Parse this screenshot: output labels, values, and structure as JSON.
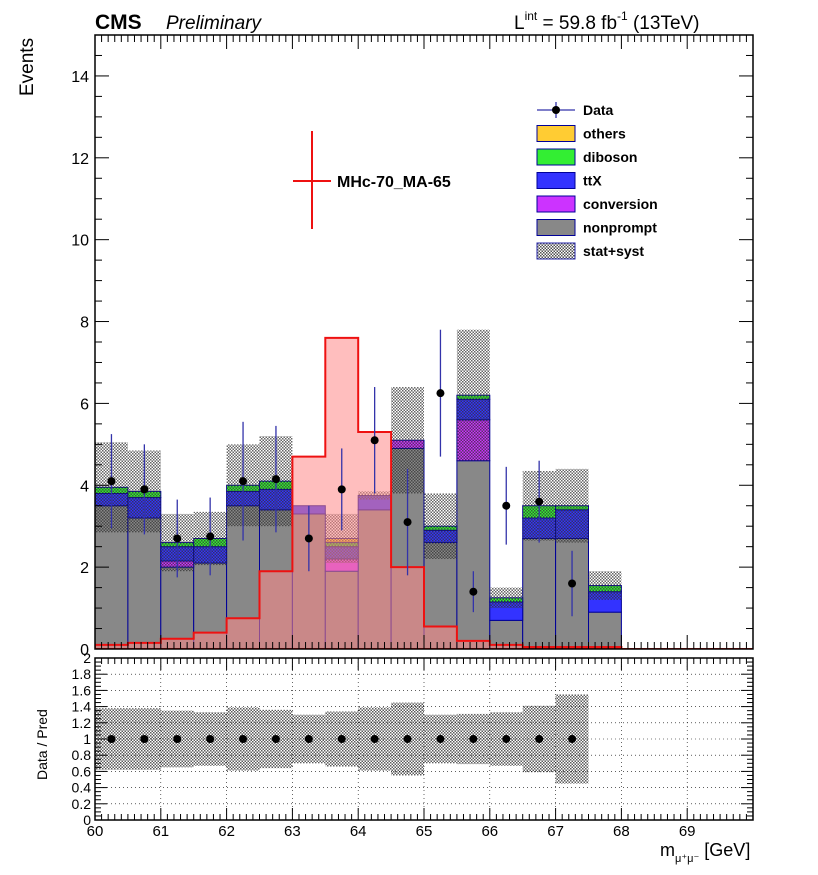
{
  "header": {
    "experiment": "CMS",
    "status": "Preliminary",
    "lumi_prefix": "L",
    "lumi_sup": "int",
    "lumi_value": " = 59.8 fb",
    "lumi_exp": "-1",
    "lumi_suffix": " (13TeV)"
  },
  "axes": {
    "y_main": "Events",
    "y_ratio": "Data / Pred",
    "x_main": "m",
    "x_sub": "μ⁺μ⁻",
    "x_unit": " [GeV]"
  },
  "signal_label": "MHc-70_MA-65",
  "colors": {
    "others": "#ffcc33",
    "diboson": "#33ee33",
    "ttX": "#3333ff",
    "conversion": "#cc33ff",
    "nonprompt": "#888888",
    "signal_line": "#ee1111",
    "signal_fill": "#ff8888",
    "data": "#000000",
    "data_err": "#3333aa",
    "border": "#000099"
  },
  "chart_data": {
    "type": "bar",
    "stacked": true,
    "bin_edges": [
      60,
      60.5,
      61,
      61.5,
      62,
      62.5,
      63,
      63.5,
      64,
      64.5,
      65,
      65.5,
      66,
      66.5,
      67,
      67.5,
      68,
      68.5,
      69,
      69.5,
      70
    ],
    "main": {
      "ylim": [
        0,
        15
      ],
      "yticks": [
        0,
        2,
        4,
        6,
        8,
        10,
        12,
        14
      ],
      "series": [
        {
          "name": "nonprompt",
          "values": [
            3.5,
            3.2,
            2.0,
            2.1,
            3.5,
            3.4,
            3.3,
            1.9,
            3.4,
            4.9,
            2.6,
            4.6,
            0.7,
            2.7,
            2.7,
            0.9,
            0,
            0,
            0,
            0
          ]
        },
        {
          "name": "conversion",
          "values": [
            0,
            0,
            0.15,
            0,
            0,
            0,
            0,
            0.3,
            0,
            0.2,
            0,
            1.0,
            0,
            0,
            0,
            0,
            0,
            0,
            0,
            0
          ]
        },
        {
          "name": "ttX",
          "values": [
            0.3,
            0.5,
            0.35,
            0.4,
            0.35,
            0.5,
            0.2,
            0.3,
            0.35,
            0,
            0.3,
            0.5,
            0.45,
            0.5,
            0.7,
            0.5,
            0,
            0,
            0,
            0
          ]
        },
        {
          "name": "diboson",
          "values": [
            0.15,
            0.15,
            0.1,
            0.2,
            0.15,
            0.2,
            0,
            0.1,
            0,
            0,
            0.1,
            0.1,
            0.1,
            0.3,
            0.1,
            0.15,
            0,
            0,
            0,
            0
          ]
        },
        {
          "name": "others",
          "values": [
            0,
            0,
            0,
            0,
            0,
            0,
            0,
            0.1,
            0,
            0,
            0,
            0,
            0,
            0,
            0,
            0,
            0,
            0,
            0,
            0
          ]
        }
      ],
      "band_half_width": [
        1.1,
        1.0,
        0.7,
        0.65,
        1.0,
        1.1,
        0.0,
        0.6,
        0.1,
        1.3,
        0.8,
        1.6,
        0.25,
        0.85,
        0.9,
        0.35,
        0,
        0,
        0,
        0
      ],
      "signal": {
        "name": "MHc-70_MA-65",
        "values": [
          0.1,
          0.15,
          0.25,
          0.4,
          0.75,
          1.9,
          4.7,
          7.6,
          5.3,
          2.0,
          0.55,
          0.2,
          0.1,
          0.05,
          0.05,
          0.05,
          0,
          0,
          0,
          0
        ]
      },
      "data": {
        "x": [
          60.25,
          60.75,
          61.25,
          61.75,
          62.25,
          62.75,
          63.25,
          63.75,
          64.25,
          64.75,
          65.25,
          65.75,
          66.25,
          66.75,
          67.25,
          67.75,
          68.25,
          68.75,
          69.25,
          69.75
        ],
        "y": [
          4.1,
          3.9,
          2.7,
          2.75,
          4.1,
          4.15,
          2.7,
          3.9,
          5.1,
          3.1,
          6.25,
          1.4,
          3.5,
          3.6,
          1.6,
          0,
          0,
          0,
          0,
          0
        ],
        "err": [
          1.15,
          1.1,
          0.95,
          0.95,
          1.45,
          1.3,
          0.8,
          1.0,
          1.3,
          1.3,
          1.55,
          0.5,
          0.95,
          1.0,
          0.8,
          0,
          0,
          0,
          0,
          0
        ]
      }
    },
    "ratio": {
      "ylim": [
        0,
        2
      ],
      "yticks": [
        0,
        0.2,
        0.4,
        0.6,
        0.8,
        1,
        1.2,
        1.4,
        1.6,
        1.8,
        2
      ],
      "points": [
        1,
        1,
        1,
        1,
        1,
        1,
        1,
        1,
        1,
        1,
        1,
        1,
        1,
        1,
        1,
        1,
        1,
        1,
        1,
        1
      ],
      "band_half_width": [
        0.38,
        0.38,
        0.35,
        0.33,
        0.39,
        0.36,
        0.3,
        0.34,
        0.39,
        0.45,
        0.3,
        0.31,
        0.33,
        0.41,
        0.55,
        0,
        0,
        0,
        0,
        0
      ]
    },
    "xlim": [
      60,
      70
    ],
    "xticks": [
      60,
      61,
      62,
      63,
      64,
      65,
      66,
      67,
      68,
      69
    ],
    "legend": {
      "placement": "top-right",
      "entries": [
        "Data",
        "others",
        "diboson",
        "ttX",
        "conversion",
        "nonprompt",
        "stat+syst"
      ]
    }
  }
}
